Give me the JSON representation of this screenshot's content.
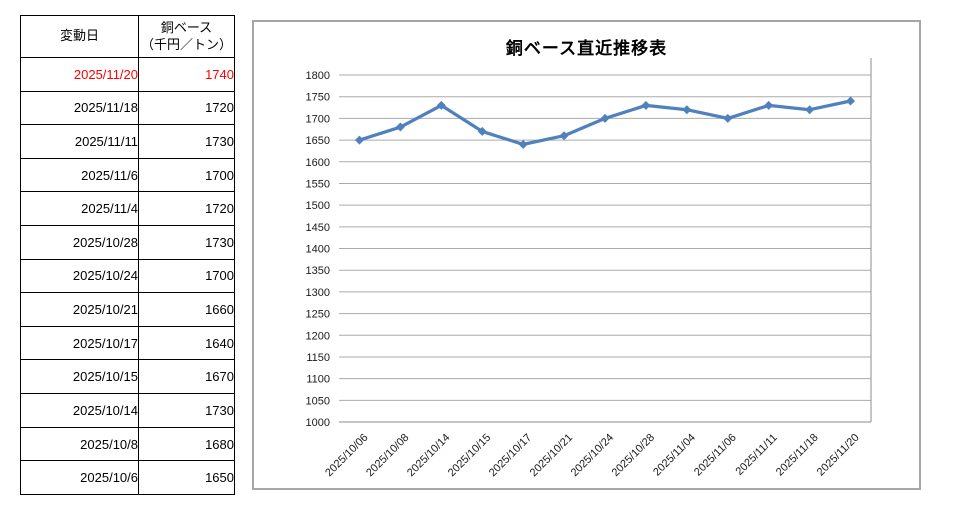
{
  "colors": {
    "line": "#4F81BD",
    "marker": "#4F81BD",
    "highlight_red": "#FF0000",
    "grid": "#ABABAB",
    "axis": "#8C8C8C",
    "chart_frame": "#A6A6A6",
    "table_border": "#000000"
  },
  "table": {
    "col1_header": "変動日",
    "col2_header_line1": "銅ベース",
    "col2_header_line2": "（千円／トン）",
    "rows": [
      {
        "date": "2025/11/20",
        "value": "1740",
        "highlight": true
      },
      {
        "date": "2025/11/18",
        "value": "1720",
        "highlight": false
      },
      {
        "date": "2025/11/11",
        "value": "1730",
        "highlight": false
      },
      {
        "date": "2025/11/6",
        "value": "1700",
        "highlight": false
      },
      {
        "date": "2025/11/4",
        "value": "1720",
        "highlight": false
      },
      {
        "date": "2025/10/28",
        "value": "1730",
        "highlight": false
      },
      {
        "date": "2025/10/24",
        "value": "1700",
        "highlight": false
      },
      {
        "date": "2025/10/21",
        "value": "1660",
        "highlight": false
      },
      {
        "date": "2025/10/17",
        "value": "1640",
        "highlight": false
      },
      {
        "date": "2025/10/15",
        "value": "1670",
        "highlight": false
      },
      {
        "date": "2025/10/14",
        "value": "1730",
        "highlight": false
      },
      {
        "date": "2025/10/8",
        "value": "1680",
        "highlight": false
      },
      {
        "date": "2025/10/6",
        "value": "1650",
        "highlight": false
      }
    ]
  },
  "chart_data": {
    "type": "line",
    "title": "銅ベース直近推移表",
    "categories": [
      "2025/10/06",
      "2025/10/08",
      "2025/10/14",
      "2025/10/15",
      "2025/10/17",
      "2025/10/21",
      "2025/10/24",
      "2025/10/28",
      "2025/11/04",
      "2025/11/06",
      "2025/11/11",
      "2025/11/18",
      "2025/11/20"
    ],
    "values": [
      1650,
      1680,
      1730,
      1670,
      1640,
      1660,
      1700,
      1730,
      1720,
      1700,
      1730,
      1720,
      1740
    ],
    "xlabel": "",
    "ylabel": "",
    "ylim": [
      1000,
      1800
    ],
    "ytick_step": 50,
    "grid": true,
    "legend": false,
    "marker": "diamond"
  }
}
